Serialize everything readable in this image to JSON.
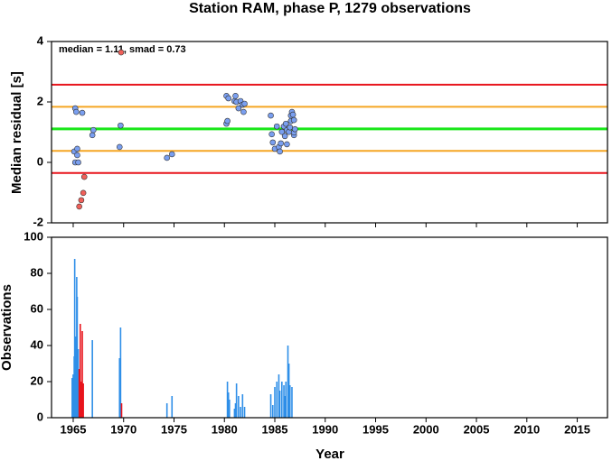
{
  "chart_data": [
    {
      "type": "scatter",
      "title": "Station RAM, phase P, 1279 observations",
      "ylabel": "Median residual [s]",
      "annotation": "median = 1.11, smad = 0.73",
      "xlim": [
        1962.85,
        2018
      ],
      "xticks": [
        1965,
        1970,
        1975,
        1980,
        1985,
        1990,
        1995,
        2000,
        2005,
        2010,
        2015
      ],
      "ylim": [
        -2,
        4
      ],
      "yticks": [
        -2,
        0,
        2,
        4
      ],
      "hlines": [
        {
          "value": 2.57,
          "color": "#e8141c"
        },
        {
          "value": 1.84,
          "color": "#f5a623"
        },
        {
          "value": 1.11,
          "color": "#19e619"
        },
        {
          "value": 0.38,
          "color": "#f5a623"
        },
        {
          "value": -0.35,
          "color": "#e8141c"
        }
      ],
      "series": [
        {
          "color": "#f0605a",
          "x": [
            1969.75,
            1966.1,
            1966.0,
            1965.8,
            1965.6
          ],
          "values": [
            3.64,
            -0.48,
            -1.01,
            -1.25,
            -1.46
          ]
        },
        {
          "color": "#7a9ff0",
          "x": [
            1965.1,
            1965.2,
            1965.2,
            1965.3,
            1965.4,
            1965.4,
            1965.5,
            1965.9,
            1966.9,
            1967.0,
            1969.7,
            1969.6,
            1974.3,
            1974.8,
            1980.2,
            1980.4,
            1980.2,
            1980.3,
            1981.0,
            1981.1,
            1981.2,
            1981.4,
            1981.6,
            1981.8,
            1981.9,
            1982.0,
            1984.6,
            1984.7,
            1984.8,
            1985.0,
            1985.2,
            1985.4,
            1985.5,
            1985.6,
            1985.7,
            1985.9,
            1986.0,
            1986.1,
            1986.2,
            1986.2,
            1986.4,
            1986.5,
            1986.6,
            1986.6,
            1986.7,
            1986.8,
            1986.9,
            1986.9,
            1986.9,
            1987.0
          ],
          "values": [
            0.36,
            0.0,
            1.79,
            1.67,
            0.24,
            0.45,
            0.0,
            1.64,
            0.9,
            1.07,
            1.22,
            0.51,
            0.15,
            0.27,
            2.2,
            2.12,
            1.28,
            1.37,
            2.03,
            2.2,
            2.0,
            1.79,
            2.03,
            1.91,
            1.67,
            1.94,
            1.55,
            0.93,
            0.66,
            0.45,
            1.19,
            0.51,
            0.36,
            0.63,
            1.01,
            1.19,
            0.87,
            1.28,
            0.6,
            1.07,
            1.01,
            1.16,
            1.37,
            1.55,
            1.67,
            1.58,
            1.4,
            0.9,
            0.99,
            1.1
          ]
        }
      ]
    },
    {
      "type": "bar",
      "xlabel": "Year",
      "ylabel": "Observations",
      "xlim": [
        1962.85,
        2018
      ],
      "xticks": [
        1965,
        1970,
        1975,
        1980,
        1985,
        1990,
        1995,
        2000,
        2005,
        2010,
        2015
      ],
      "ylim": [
        0,
        100
      ],
      "yticks": [
        0,
        20,
        40,
        60,
        80,
        100
      ],
      "series": [
        {
          "color": "#2f8fe8",
          "x": [
            1964.9,
            1965.0,
            1965.1,
            1965.15,
            1965.25,
            1965.35,
            1965.4,
            1965.5,
            1965.6,
            1966.9,
            1969.6,
            1969.7,
            1974.3,
            1974.8,
            1980.3,
            1980.4,
            1980.5,
            1981.0,
            1981.1,
            1981.2,
            1981.4,
            1981.6,
            1981.8,
            1982.0,
            1984.6,
            1984.8,
            1985.0,
            1985.2,
            1985.4,
            1985.5,
            1985.7,
            1985.9,
            1986.0,
            1986.1,
            1986.3,
            1986.4,
            1986.5,
            1986.7
          ],
          "values": [
            22,
            24,
            34,
            88,
            45,
            78,
            67,
            38,
            20,
            43,
            33,
            50,
            8,
            12,
            20,
            14,
            10,
            5,
            8,
            19,
            12,
            6,
            13,
            6,
            13,
            7,
            17,
            20,
            24,
            15,
            20,
            18,
            12,
            20,
            40,
            30,
            18,
            17
          ]
        },
        {
          "color": "#e8141c",
          "x": [
            1965.6,
            1965.7,
            1965.8,
            1965.9,
            1966.0,
            1969.8
          ],
          "values": [
            27,
            52,
            20,
            48,
            19,
            8
          ]
        }
      ]
    }
  ]
}
